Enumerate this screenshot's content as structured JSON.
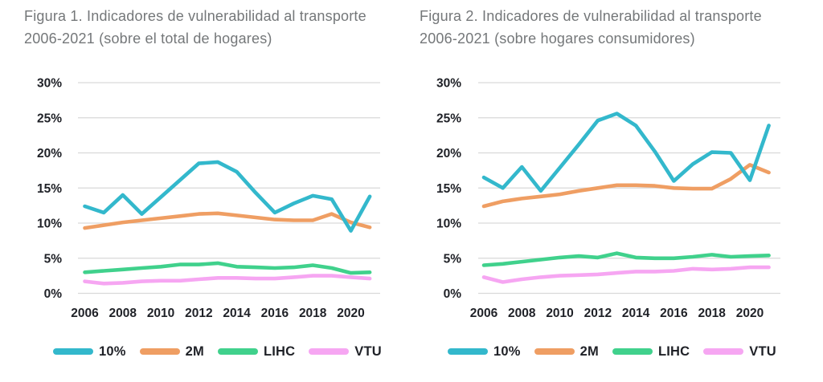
{
  "figures_count": 2,
  "colors": {
    "series_10pct": "#33b8cc",
    "series_2m": "#ef9e63",
    "series_lihc": "#40d18c",
    "series_vtu": "#f6a6f2",
    "gridline": "#d9d9d9",
    "tick_text": "#1f2127",
    "title_text": "#747779",
    "background": "#ffffff"
  },
  "chart_data": [
    {
      "type": "line",
      "title": "Figura 1. Indicadores de vulnerabilidad al transporte 2006-2021 (sobre el total de hogares)",
      "x": [
        2006,
        2007,
        2008,
        2009,
        2010,
        2011,
        2012,
        2013,
        2014,
        2015,
        2016,
        2017,
        2018,
        2019,
        2020,
        2021
      ],
      "x_tick_labels": [
        "2006",
        "2008",
        "2010",
        "2012",
        "2014",
        "2016",
        "2018",
        "2020"
      ],
      "y_ticks": [
        0,
        5,
        10,
        15,
        20,
        25,
        30
      ],
      "y_tick_suffix": "%",
      "ylim": [
        0,
        30
      ],
      "grid": "horizontal",
      "legend_position": "bottom",
      "series": [
        {
          "name": "10%",
          "color": "#33b8cc",
          "values": [
            12.4,
            11.5,
            14.0,
            11.3,
            13.7,
            16.1,
            18.5,
            18.7,
            17.3,
            14.3,
            11.5,
            12.8,
            13.9,
            13.4,
            8.9,
            13.8
          ]
        },
        {
          "name": "2M",
          "color": "#ef9e63",
          "values": [
            9.3,
            9.7,
            10.1,
            10.4,
            10.7,
            11.0,
            11.3,
            11.4,
            11.1,
            10.8,
            10.5,
            10.4,
            10.4,
            11.3,
            10.1,
            9.4
          ]
        },
        {
          "name": "LIHC",
          "color": "#40d18c",
          "values": [
            3.0,
            3.2,
            3.4,
            3.6,
            3.8,
            4.1,
            4.1,
            4.3,
            3.8,
            3.7,
            3.6,
            3.7,
            4.0,
            3.6,
            2.9,
            3.0
          ]
        },
        {
          "name": "VTU",
          "color": "#f6a6f2",
          "values": [
            1.7,
            1.4,
            1.5,
            1.7,
            1.8,
            1.8,
            2.0,
            2.2,
            2.2,
            2.1,
            2.1,
            2.3,
            2.5,
            2.5,
            2.3,
            2.1
          ]
        }
      ]
    },
    {
      "type": "line",
      "title": "Figura 2. Indicadores de vulnerabilidad al transporte 2006-2021 (sobre hogares consumidores)",
      "x": [
        2006,
        2007,
        2008,
        2009,
        2010,
        2011,
        2012,
        2013,
        2014,
        2015,
        2016,
        2017,
        2018,
        2019,
        2020,
        2021
      ],
      "x_tick_labels": [
        "2006",
        "2008",
        "2010",
        "2012",
        "2014",
        "2016",
        "2018",
        "2020"
      ],
      "y_ticks": [
        0,
        5,
        10,
        15,
        20,
        25,
        30
      ],
      "y_tick_suffix": "%",
      "ylim": [
        0,
        30
      ],
      "grid": "horizontal",
      "legend_position": "bottom",
      "series": [
        {
          "name": "10%",
          "color": "#33b8cc",
          "values": [
            16.5,
            15.0,
            18.0,
            14.6,
            17.9,
            21.2,
            24.6,
            25.6,
            23.9,
            20.2,
            16.0,
            18.4,
            20.1,
            20.0,
            16.1,
            23.9
          ]
        },
        {
          "name": "2M",
          "color": "#ef9e63",
          "values": [
            12.4,
            13.1,
            13.5,
            13.8,
            14.1,
            14.6,
            15.0,
            15.4,
            15.4,
            15.3,
            15.0,
            14.9,
            14.9,
            16.3,
            18.3,
            17.2
          ]
        },
        {
          "name": "LIHC",
          "color": "#40d18c",
          "values": [
            4.0,
            4.2,
            4.5,
            4.8,
            5.1,
            5.3,
            5.1,
            5.7,
            5.1,
            5.0,
            5.0,
            5.2,
            5.5,
            5.2,
            5.3,
            5.4
          ]
        },
        {
          "name": "VTU",
          "color": "#f6a6f2",
          "values": [
            2.3,
            1.6,
            2.0,
            2.3,
            2.5,
            2.6,
            2.7,
            2.9,
            3.1,
            3.1,
            3.2,
            3.5,
            3.4,
            3.5,
            3.7,
            3.7
          ]
        }
      ]
    }
  ]
}
